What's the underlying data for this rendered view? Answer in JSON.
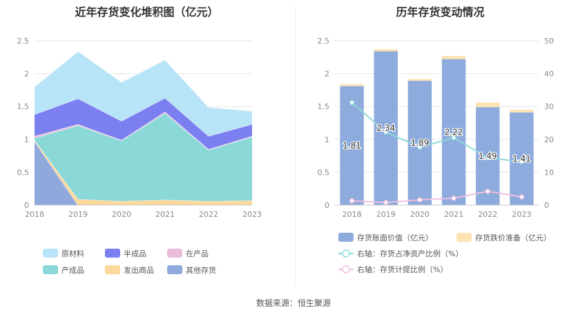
{
  "left_title": "近年存货变化堆积图（亿元）",
  "right_title": "历年存货变动情况",
  "source": "数据来源：恒生聚源",
  "chart_data": [
    {
      "type": "area",
      "stacked": true,
      "title": "近年存货变化堆积图（亿元）",
      "x": [
        "2018",
        "2019",
        "2020",
        "2021",
        "2022",
        "2023"
      ],
      "ylim": [
        0,
        2.5
      ],
      "yticks": [
        "0",
        "0.5",
        "1",
        "1.5",
        "2",
        "2.5"
      ],
      "grid": true,
      "legend_position": "bottom",
      "series": [
        {
          "name": "其他存货",
          "color": "#8fa9dc",
          "values": [
            0.97,
            0.0,
            0.0,
            0.0,
            0.0,
            0.0
          ]
        },
        {
          "name": "发出商品",
          "color": "#fcd89a",
          "values": [
            0.02,
            0.09,
            0.06,
            0.08,
            0.06,
            0.07
          ]
        },
        {
          "name": "产成品",
          "color": "#8ad8d8",
          "values": [
            0.03,
            1.12,
            0.92,
            1.32,
            0.78,
            0.97
          ]
        },
        {
          "name": "在产品",
          "color": "#e9bcdc",
          "values": [
            0.03,
            0.02,
            0.01,
            0.02,
            0.01,
            0.01
          ]
        },
        {
          "name": "半成品",
          "color": "#7c7ff0",
          "values": [
            0.33,
            0.39,
            0.29,
            0.21,
            0.2,
            0.18
          ]
        },
        {
          "name": "原材料",
          "color": "#b7e4f7",
          "values": [
            0.42,
            0.72,
            0.59,
            0.58,
            0.44,
            0.2
          ]
        }
      ]
    },
    {
      "type": "bar",
      "title": "历年存货变动情况",
      "categories": [
        "2018",
        "2019",
        "2020",
        "2021",
        "2022",
        "2023"
      ],
      "ylim": [
        0,
        2.5
      ],
      "yticks": [
        "0",
        "0.5",
        "1",
        "1.5",
        "2",
        "2.5"
      ],
      "y2lim": [
        0,
        50
      ],
      "y2ticks": [
        "0",
        "10",
        "20",
        "30",
        "40",
        "50"
      ],
      "legend_position": "bottom",
      "series": [
        {
          "name": "存货账面价值（亿元）",
          "color": "#8dabdc",
          "axis": "left",
          "kind": "bar",
          "values": [
            1.81,
            2.34,
            1.89,
            2.22,
            1.49,
            1.41
          ],
          "labels": [
            "1.81",
            "2.34",
            "1.89",
            "2.22",
            "1.49",
            "1.41"
          ]
        },
        {
          "name": "存货跌价准备（亿元）",
          "color": "#fde3b3",
          "axis": "left",
          "kind": "bar",
          "values": [
            0.03,
            0.03,
            0.03,
            0.05,
            0.07,
            0.04
          ]
        },
        {
          "name": "右轴：存货占净资产比例（%）",
          "color": "#8fd9dc",
          "axis": "right",
          "kind": "line",
          "values": [
            31.2,
            22.2,
            17.6,
            20.5,
            14.4,
            13.2
          ]
        },
        {
          "name": "右轴：存货计提比例（%）",
          "color": "#efbfe0",
          "axis": "right",
          "kind": "line",
          "values": [
            1.3,
            0.8,
            1.6,
            2.1,
            4.2,
            2.5
          ]
        }
      ]
    }
  ]
}
